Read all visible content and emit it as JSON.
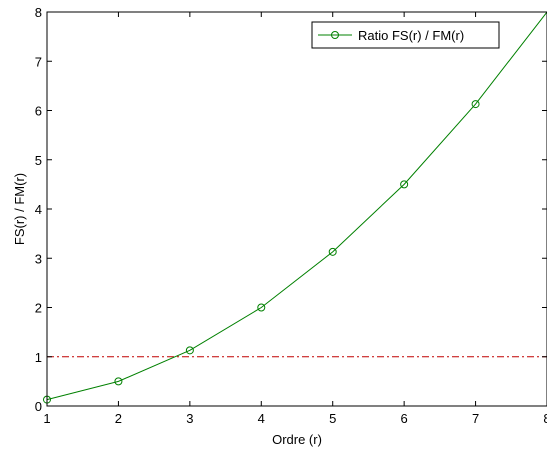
{
  "chart_data": {
    "type": "line",
    "xlabel": "Ordre (r)",
    "ylabel": "FS(r) / FM(r)",
    "xlim": [
      1,
      8
    ],
    "ylim": [
      0,
      8
    ],
    "xticks": [
      1,
      2,
      3,
      4,
      5,
      6,
      7,
      8
    ],
    "yticks": [
      0,
      1,
      2,
      3,
      4,
      5,
      6,
      7,
      8
    ],
    "grid": false,
    "legend_position": "top-right",
    "series": [
      {
        "name": "Ratio FS(r) / FM(r)",
        "color": "#008000",
        "marker": "circle",
        "x": [
          1,
          2,
          3,
          4,
          5,
          6,
          7
        ],
        "y": [
          0.13,
          0.5,
          1.13,
          2.0,
          3.13,
          4.5,
          6.13
        ],
        "curve_extends_to_x": 8,
        "curve_end_y": 8.0
      }
    ],
    "reference_lines": [
      {
        "y": 1,
        "style": "dash-dot",
        "color": "#c00000"
      }
    ]
  }
}
